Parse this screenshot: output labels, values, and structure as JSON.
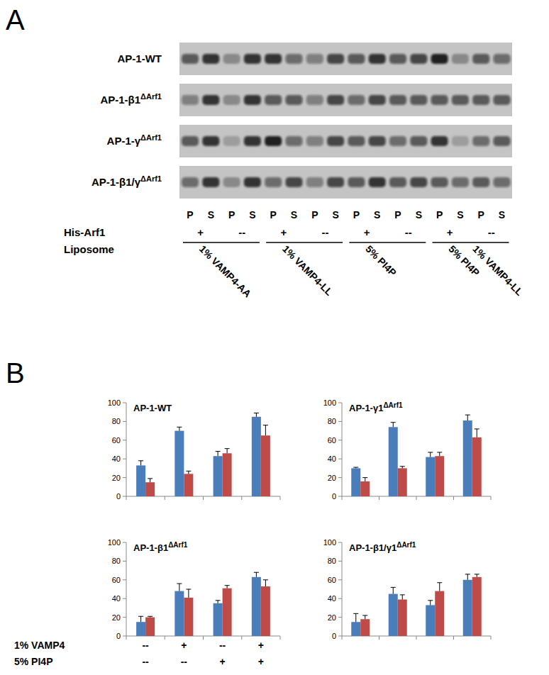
{
  "panel_labels": [
    "A",
    "B"
  ],
  "panel_a": {
    "blots": [
      {
        "label": "AP-1-WT",
        "bands": [
          0.6,
          0.8,
          0.3,
          0.8,
          0.8,
          0.5,
          0.4,
          0.7,
          0.6,
          0.8,
          0.6,
          0.7,
          0.9,
          0.3,
          0.6,
          0.5
        ]
      },
      {
        "label": "AP-1-β1 ΔArf1",
        "bands": [
          0.4,
          0.8,
          0.3,
          0.8,
          0.6,
          0.6,
          0.4,
          0.7,
          0.5,
          0.7,
          0.6,
          0.6,
          0.6,
          0.6,
          0.6,
          0.6
        ]
      },
      {
        "label": "AP-1-γ ΔArf1",
        "bands": [
          0.6,
          0.8,
          0.2,
          0.8,
          0.9,
          0.5,
          0.4,
          0.7,
          0.6,
          0.7,
          0.5,
          0.6,
          0.8,
          0.2,
          0.5,
          0.6
        ]
      },
      {
        "label": "AP-1-β1/γ ΔArf1",
        "bands": [
          0.5,
          0.8,
          0.3,
          0.8,
          0.5,
          0.7,
          0.4,
          0.7,
          0.6,
          0.8,
          0.6,
          0.7,
          0.6,
          0.5,
          0.6,
          0.5
        ]
      }
    ],
    "lanes": [
      "P",
      "S",
      "P",
      "S",
      "P",
      "S",
      "P",
      "S",
      "P",
      "S",
      "P",
      "S",
      "P",
      "S",
      "P",
      "S"
    ],
    "his_arf1_label": "His-Arf1",
    "his_arf1": [
      "+",
      "--",
      "+",
      "--",
      "+",
      "--",
      "+",
      "--"
    ],
    "liposome_label": "Liposome",
    "liposome": [
      "1% VAMP4-AA",
      "1% VAMP4-LL",
      "5% PI4P",
      [
        "5% PI4P",
        "1% VAMP4-LL"
      ]
    ]
  },
  "conditions": {
    "rows": [
      {
        "label": "1% VAMP4",
        "values": [
          "--",
          "+",
          "--",
          "+"
        ]
      },
      {
        "label": "5% PI4P",
        "values": [
          "--",
          "--",
          "+",
          "+"
        ]
      }
    ]
  },
  "chart_data": [
    {
      "type": "bar",
      "title": "AP-1-WT",
      "categories": [
        null,
        null,
        null,
        null
      ],
      "ylim": [
        0,
        100
      ],
      "yticks": [
        0,
        20,
        40,
        60,
        80,
        100
      ],
      "grid": false,
      "series": [
        {
          "color": "#4a7ebb",
          "values": [
            33,
            70,
            43,
            85
          ],
          "errors": [
            5,
            4,
            5,
            4
          ]
        },
        {
          "color": "#be4b48",
          "values": [
            15,
            24,
            46,
            65
          ],
          "errors": [
            4,
            3,
            5,
            11
          ]
        }
      ]
    },
    {
      "type": "bar",
      "title": "AP-1-γ1 ΔArf1",
      "categories": [
        null,
        null,
        null,
        null
      ],
      "ylim": [
        0,
        100
      ],
      "yticks": [
        0,
        20,
        40,
        60,
        80,
        100
      ],
      "grid": false,
      "series": [
        {
          "color": "#4a7ebb",
          "values": [
            30,
            74,
            42,
            81
          ],
          "errors": [
            1,
            5,
            5,
            6
          ]
        },
        {
          "color": "#be4b48",
          "values": [
            16,
            30,
            43,
            63
          ],
          "errors": [
            4,
            2,
            4,
            9
          ]
        }
      ]
    },
    {
      "type": "bar",
      "title": "AP-1-β1 ΔArf1",
      "categories": [
        null,
        null,
        null,
        null
      ],
      "ylim": [
        0,
        100
      ],
      "yticks": [
        0,
        20,
        40,
        60,
        80,
        100
      ],
      "grid": false,
      "series": [
        {
          "color": "#4a7ebb",
          "values": [
            15,
            48,
            35,
            63
          ],
          "errors": [
            6,
            8,
            3,
            5
          ]
        },
        {
          "color": "#be4b48",
          "values": [
            20,
            41,
            51,
            53
          ],
          "errors": [
            1,
            9,
            3,
            7
          ]
        }
      ]
    },
    {
      "type": "bar",
      "title": "AP-1-β1/γ1 ΔArf1",
      "categories": [
        null,
        null,
        null,
        null
      ],
      "ylim": [
        0,
        100
      ],
      "yticks": [
        0,
        20,
        40,
        60,
        80,
        100
      ],
      "grid": false,
      "series": [
        {
          "color": "#4a7ebb",
          "values": [
            15,
            45,
            33,
            60
          ],
          "errors": [
            9,
            7,
            5,
            6
          ]
        },
        {
          "color": "#be4b48",
          "values": [
            18,
            39,
            48,
            63
          ],
          "errors": [
            4,
            5,
            9,
            3
          ]
        }
      ]
    }
  ]
}
